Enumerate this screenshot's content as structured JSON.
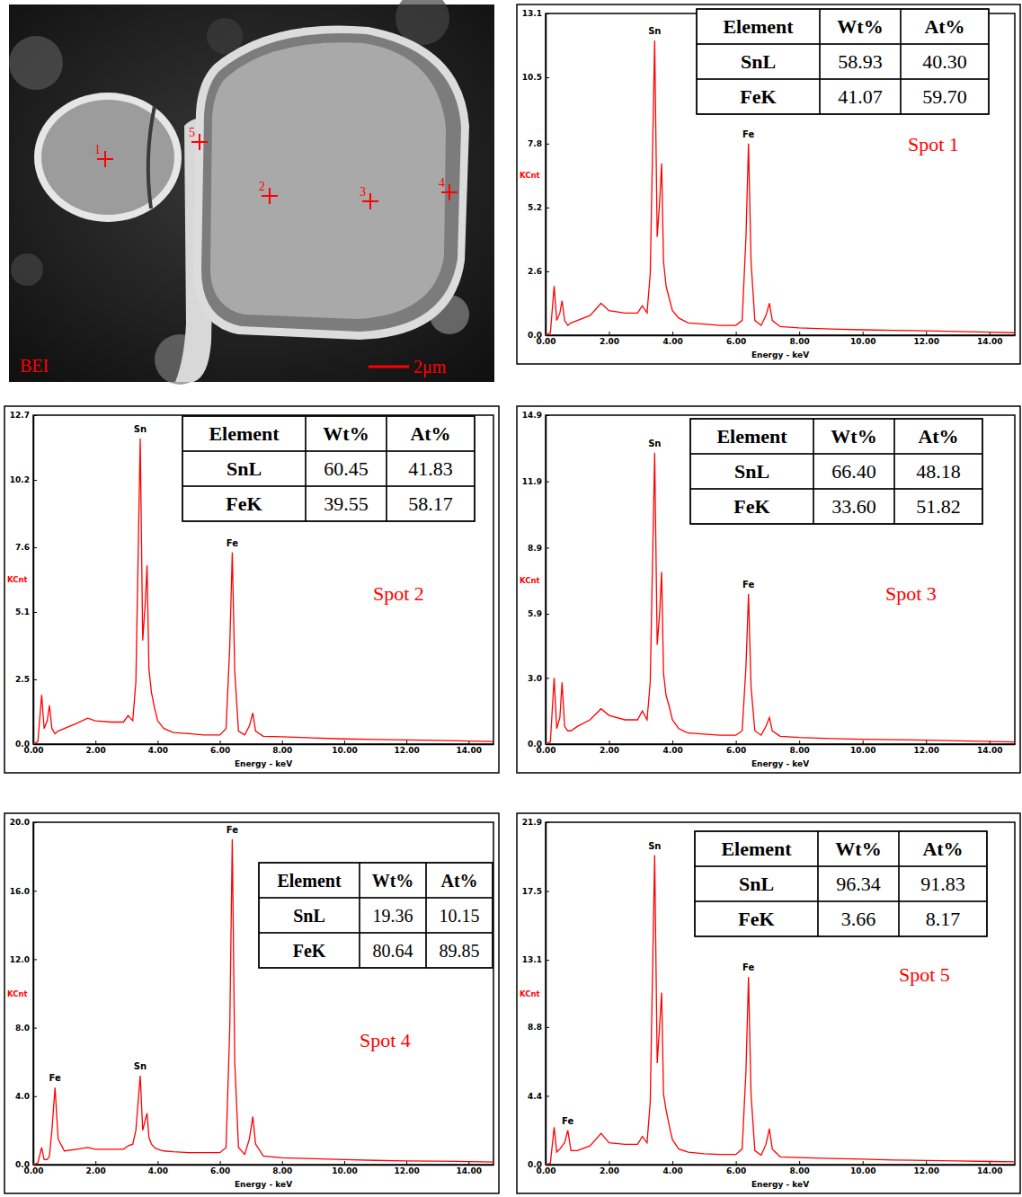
{
  "micrograph": {
    "label": "BEI",
    "scale_bar": "2μm",
    "spots": [
      "1",
      "2",
      "3",
      "4",
      "5"
    ]
  },
  "chart_data": [
    {
      "type": "line",
      "title": "Spot 1",
      "x_label": "Energy - keV",
      "y_label": "KCnt",
      "color": "#ff0000",
      "x": [
        0,
        0.15,
        0.27,
        0.35,
        0.45,
        0.52,
        0.6,
        0.7,
        0.8,
        1.0,
        1.4,
        1.75,
        2.0,
        2.5,
        2.9,
        3.05,
        3.2,
        3.3,
        3.44,
        3.52,
        3.6,
        3.66,
        3.72,
        3.8,
        3.9,
        4.0,
        4.2,
        4.5,
        5.0,
        5.5,
        6.0,
        6.2,
        6.32,
        6.4,
        6.48,
        6.6,
        6.8,
        6.95,
        7.06,
        7.15,
        7.4,
        8.0,
        9.0,
        10.0,
        11.0,
        12.0,
        13.0,
        14.0,
        14.8
      ],
      "values": [
        0,
        0.1,
        2.0,
        0.6,
        0.9,
        1.4,
        0.6,
        0.4,
        0.5,
        0.6,
        0.8,
        1.3,
        1.0,
        0.9,
        0.9,
        1.2,
        0.9,
        2.5,
        12.0,
        4.0,
        5.5,
        7.0,
        3.0,
        2.0,
        1.5,
        1.0,
        0.7,
        0.5,
        0.45,
        0.4,
        0.4,
        0.6,
        4.0,
        7.8,
        3.0,
        0.6,
        0.4,
        0.8,
        1.3,
        0.6,
        0.35,
        0.3,
        0.25,
        0.22,
        0.2,
        0.18,
        0.15,
        0.12,
        0.1
      ],
      "xlim": [
        0,
        14.8
      ],
      "xticks": [
        {
          "value": 0,
          "label": "0.00"
        },
        {
          "value": 2,
          "label": "2.00"
        },
        {
          "value": 4,
          "label": "4.00"
        },
        {
          "value": 6,
          "label": "6.00"
        },
        {
          "value": 8,
          "label": "8.00"
        },
        {
          "value": 10,
          "label": "10.00"
        },
        {
          "value": 12,
          "label": "12.00"
        },
        {
          "value": 14,
          "label": "14.00"
        }
      ],
      "ylim": [
        0,
        13.1
      ],
      "yticks": [
        {
          "value": 0,
          "label": "0.0"
        },
        2.6,
        5.2,
        7.8,
        10.5,
        13.1
      ],
      "annotations": [
        {
          "text": "Sn",
          "x": 3.44
        },
        {
          "text": "Fe",
          "x": 6.4
        }
      ],
      "table": {
        "columns": [
          "Element",
          "Wt%",
          "At%"
        ],
        "rows": [
          [
            "SnL",
            "58.93",
            "40.30"
          ],
          [
            "FeK",
            "41.07",
            "59.70"
          ]
        ]
      }
    },
    {
      "type": "line",
      "title": "Spot 2",
      "x_label": "Energy - keV",
      "y_label": "KCnt",
      "color": "#ff0000",
      "x": [
        0,
        0.15,
        0.27,
        0.35,
        0.45,
        0.52,
        0.6,
        0.7,
        0.8,
        1.0,
        1.4,
        1.75,
        2.0,
        2.5,
        2.9,
        3.05,
        3.2,
        3.3,
        3.44,
        3.52,
        3.6,
        3.66,
        3.72,
        3.8,
        3.9,
        4.0,
        4.2,
        4.5,
        5.0,
        5.5,
        6.0,
        6.2,
        6.32,
        6.4,
        6.48,
        6.6,
        6.8,
        6.95,
        7.06,
        7.15,
        7.4,
        8.0,
        9.0,
        10.0,
        11.0,
        12.0,
        13.0,
        14.0,
        14.8
      ],
      "values": [
        0,
        0.1,
        1.9,
        0.6,
        0.9,
        1.5,
        0.6,
        0.4,
        0.5,
        0.6,
        0.8,
        1.0,
        0.9,
        0.85,
        0.85,
        1.1,
        0.9,
        2.4,
        11.8,
        4.0,
        5.4,
        6.9,
        2.9,
        2.0,
        1.4,
        0.9,
        0.6,
        0.45,
        0.4,
        0.35,
        0.35,
        0.6,
        3.8,
        7.4,
        2.8,
        0.5,
        0.35,
        0.7,
        1.2,
        0.5,
        0.3,
        0.28,
        0.24,
        0.2,
        0.18,
        0.16,
        0.14,
        0.12,
        0.1
      ],
      "xlim": [
        0,
        14.8
      ],
      "xticks": [
        {
          "value": 0,
          "label": "0.00"
        },
        {
          "value": 2,
          "label": "2.00"
        },
        {
          "value": 4,
          "label": "4.00"
        },
        {
          "value": 6,
          "label": "6.00"
        },
        {
          "value": 8,
          "label": "8.00"
        },
        {
          "value": 10,
          "label": "10.00"
        },
        {
          "value": 12,
          "label": "12.00"
        },
        {
          "value": 14,
          "label": "14.00"
        }
      ],
      "ylim": [
        0,
        12.7
      ],
      "yticks": [
        {
          "value": 0,
          "label": "0.0"
        },
        2.5,
        5.1,
        7.6,
        10.2,
        12.7
      ],
      "annotations": [
        {
          "text": "Sn",
          "x": 3.44
        },
        {
          "text": "Fe",
          "x": 6.4
        }
      ],
      "table": {
        "columns": [
          "Element",
          "Wt%",
          "At%"
        ],
        "rows": [
          [
            "SnL",
            "60.45",
            "41.83"
          ],
          [
            "FeK",
            "39.55",
            "58.17"
          ]
        ]
      }
    },
    {
      "type": "line",
      "title": "Spot 3",
      "x_label": "Energy - keV",
      "y_label": "KCnt",
      "color": "#ff0000",
      "x": [
        0,
        0.15,
        0.27,
        0.35,
        0.45,
        0.52,
        0.6,
        0.7,
        0.8,
        1.0,
        1.4,
        1.75,
        2.0,
        2.5,
        2.9,
        3.05,
        3.2,
        3.3,
        3.44,
        3.52,
        3.6,
        3.66,
        3.72,
        3.8,
        3.9,
        4.0,
        4.2,
        4.5,
        5.0,
        5.5,
        6.0,
        6.2,
        6.32,
        6.4,
        6.48,
        6.6,
        6.8,
        6.95,
        7.06,
        7.15,
        7.4,
        8.0,
        9.0,
        10.0,
        11.0,
        12.0,
        13.0,
        14.0,
        14.8
      ],
      "values": [
        0,
        0.1,
        3.0,
        0.7,
        1.2,
        2.8,
        0.8,
        0.6,
        0.6,
        0.8,
        1.1,
        1.6,
        1.3,
        1.1,
        1.1,
        1.5,
        1.1,
        2.8,
        13.2,
        4.5,
        6.0,
        7.8,
        3.2,
        2.2,
        1.7,
        1.1,
        0.7,
        0.5,
        0.45,
        0.4,
        0.4,
        0.6,
        3.5,
        6.8,
        2.6,
        0.6,
        0.4,
        0.8,
        1.2,
        0.6,
        0.35,
        0.3,
        0.25,
        0.22,
        0.2,
        0.18,
        0.15,
        0.12,
        0.1
      ],
      "xlim": [
        0,
        14.8
      ],
      "xticks": [
        {
          "value": 0,
          "label": "0.00"
        },
        {
          "value": 2,
          "label": "2.00"
        },
        {
          "value": 4,
          "label": "4.00"
        },
        {
          "value": 6,
          "label": "6.00"
        },
        {
          "value": 8,
          "label": "8.00"
        },
        {
          "value": 10,
          "label": "10.00"
        },
        {
          "value": 12,
          "label": "12.00"
        },
        {
          "value": 14,
          "label": "14.00"
        }
      ],
      "ylim": [
        0,
        14.9
      ],
      "yticks": [
        {
          "value": 0,
          "label": "0.0"
        },
        {
          "value": 3,
          "label": "3.0"
        },
        5.9,
        8.9,
        11.9,
        14.9
      ],
      "annotations": [
        {
          "text": "Sn",
          "x": 3.44
        },
        {
          "text": "Fe",
          "x": 6.4
        }
      ],
      "table": {
        "columns": [
          "Element",
          "Wt%",
          "At%"
        ],
        "rows": [
          [
            "SnL",
            "66.40",
            "48.18"
          ],
          [
            "FeK",
            "33.60",
            "51.82"
          ]
        ]
      }
    },
    {
      "type": "line",
      "title": "Spot 4",
      "x_label": "Energy - keV",
      "y_label": "KCnt",
      "color": "#ff0000",
      "x": [
        0,
        0.15,
        0.27,
        0.35,
        0.45,
        0.52,
        0.6,
        0.7,
        0.8,
        1.0,
        1.4,
        1.75,
        2.0,
        2.5,
        2.9,
        3.05,
        3.2,
        3.3,
        3.44,
        3.52,
        3.6,
        3.66,
        3.72,
        3.8,
        3.9,
        4.0,
        4.2,
        4.5,
        5.0,
        5.5,
        6.0,
        6.2,
        6.32,
        6.4,
        6.48,
        6.6,
        6.8,
        6.95,
        7.06,
        7.15,
        7.4,
        8.0,
        9.0,
        10.0,
        11.0,
        12.0,
        13.0,
        14.0,
        14.8
      ],
      "values": [
        0,
        0.1,
        1.0,
        0.3,
        0.3,
        0.5,
        2.0,
        4.5,
        1.5,
        0.8,
        0.9,
        1.0,
        0.9,
        0.9,
        0.9,
        1.1,
        1.2,
        2.0,
        5.2,
        2.0,
        2.6,
        3.0,
        1.6,
        1.2,
        1.0,
        0.9,
        0.8,
        0.75,
        0.7,
        0.7,
        0.7,
        1.0,
        8.0,
        19.0,
        6.0,
        1.0,
        0.6,
        1.5,
        2.8,
        1.2,
        0.5,
        0.4,
        0.35,
        0.3,
        0.25,
        0.22,
        0.2,
        0.18,
        0.15
      ],
      "xlim": [
        0,
        14.8
      ],
      "xticks": [
        {
          "value": 0,
          "label": "0.00"
        },
        {
          "value": 2,
          "label": "2.00"
        },
        {
          "value": 4,
          "label": "4.00"
        },
        {
          "value": 6,
          "label": "6.00"
        },
        {
          "value": 8,
          "label": "8.00"
        },
        {
          "value": 10,
          "label": "10.00"
        },
        {
          "value": 12,
          "label": "12.00"
        },
        {
          "value": 14,
          "label": "14.00"
        }
      ],
      "ylim": [
        0,
        20
      ],
      "yticks": [
        {
          "value": 0,
          "label": "0.0"
        },
        {
          "value": 4,
          "label": "4.0"
        },
        {
          "value": 8,
          "label": "8.0"
        },
        {
          "value": 12,
          "label": "12.0"
        },
        {
          "value": 16,
          "label": "16.0"
        },
        {
          "value": 20,
          "label": "20.0"
        }
      ],
      "annotations": [
        {
          "text": "Fe",
          "x": 0.7
        },
        {
          "text": "Sn",
          "x": 3.44
        },
        {
          "text": "Fe",
          "x": 6.4
        }
      ],
      "table": {
        "columns": [
          "Element",
          "Wt%",
          "At%"
        ],
        "rows": [
          [
            "SnL",
            "19.36",
            "10.15"
          ],
          [
            "FeK",
            "80.64",
            "89.85"
          ]
        ]
      }
    },
    {
      "type": "line",
      "title": "Spot 5",
      "x_label": "Energy - keV",
      "y_label": "KCnt",
      "color": "#ff0000",
      "x": [
        0,
        0.15,
        0.27,
        0.35,
        0.45,
        0.52,
        0.6,
        0.7,
        0.8,
        1.0,
        1.4,
        1.75,
        2.0,
        2.5,
        2.9,
        3.05,
        3.2,
        3.3,
        3.44,
        3.52,
        3.6,
        3.66,
        3.72,
        3.8,
        3.9,
        4.0,
        4.2,
        4.5,
        5.0,
        5.5,
        6.0,
        6.2,
        6.32,
        6.4,
        6.48,
        6.6,
        6.8,
        6.95,
        7.06,
        7.15,
        7.4,
        8.0,
        9.0,
        10.0,
        11.0,
        12.0,
        13.0,
        14.0,
        14.8
      ],
      "values": [
        0,
        0.1,
        2.4,
        0.8,
        1.0,
        1.2,
        1.4,
        2.2,
        0.9,
        0.9,
        1.2,
        2.0,
        1.4,
        1.3,
        1.3,
        1.8,
        1.4,
        4.0,
        19.8,
        6.5,
        9.0,
        11.0,
        4.5,
        3.5,
        2.5,
        1.6,
        1.0,
        0.8,
        0.7,
        0.65,
        0.65,
        1.0,
        6.0,
        12.0,
        4.5,
        0.9,
        0.6,
        1.3,
        2.3,
        1.0,
        0.5,
        0.45,
        0.4,
        0.35,
        0.3,
        0.27,
        0.24,
        0.2,
        0.18
      ],
      "xlim": [
        0,
        14.8
      ],
      "xticks": [
        {
          "value": 0,
          "label": "0.00"
        },
        {
          "value": 2,
          "label": "2.00"
        },
        {
          "value": 4,
          "label": "4.00"
        },
        {
          "value": 6,
          "label": "6.00"
        },
        {
          "value": 8,
          "label": "8.00"
        },
        {
          "value": 10,
          "label": "10.00"
        },
        {
          "value": 12,
          "label": "12.00"
        },
        {
          "value": 14,
          "label": "14.00"
        }
      ],
      "ylim": [
        0,
        21.9
      ],
      "yticks": [
        {
          "value": 0,
          "label": "0.0"
        },
        4.4,
        8.8,
        13.1,
        17.5,
        21.9
      ],
      "annotations": [
        {
          "text": "Fe",
          "x": 0.7
        },
        {
          "text": "Sn",
          "x": 3.44
        },
        {
          "text": "Fe",
          "x": 6.4
        }
      ],
      "table": {
        "columns": [
          "Element",
          "Wt%",
          "At%"
        ],
        "rows": [
          [
            "SnL",
            "96.34",
            "91.83"
          ],
          [
            "FeK",
            "3.66",
            "8.17"
          ]
        ]
      }
    }
  ]
}
